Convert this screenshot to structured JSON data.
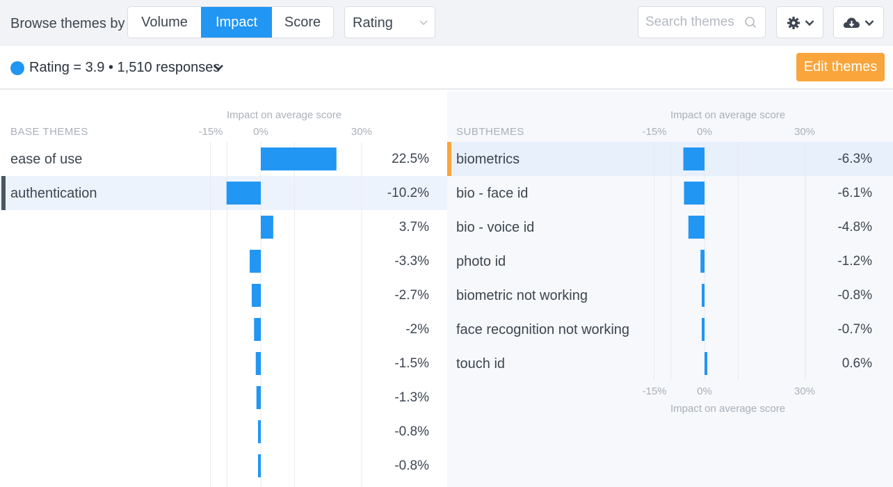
{
  "toolbar": {
    "browse_label": "Browse themes by",
    "modes": [
      "Volume",
      "Impact",
      "Score"
    ],
    "active_mode": "Impact",
    "metric_select": "Rating",
    "search_placeholder": "Search themes",
    "settings_icon": "gear-icon",
    "download_icon": "cloud-download-icon"
  },
  "summary": {
    "text": "Rating = 3.9 • 1,510 responses",
    "dot_color": "#2196f3"
  },
  "edit_button": "Edit themes",
  "colors": {
    "bar": "#2196f3",
    "edit": "#f9a53b",
    "left_selected": "#4a5566",
    "right_selected": "#f9a53b"
  },
  "base_panel": {
    "column_label": "BASE THEMES",
    "axis_title": "Impact on average score",
    "ticks": [
      "-15%",
      "0%",
      "30%"
    ],
    "selected_index": 1,
    "rows": [
      {
        "label": "ease of use",
        "value_text": "22.5%"
      },
      {
        "label": "authentication",
        "value_text": "-10.2%"
      },
      {
        "label": "",
        "value_text": "3.7%"
      },
      {
        "label": "",
        "value_text": "-3.3%"
      },
      {
        "label": "",
        "value_text": "-2.7%"
      },
      {
        "label": "",
        "value_text": "-2%"
      },
      {
        "label": "",
        "value_text": "-1.5%"
      },
      {
        "label": "",
        "value_text": "-1.3%"
      },
      {
        "label": "",
        "value_text": "-0.8%"
      },
      {
        "label": "",
        "value_text": "-0.8%"
      }
    ]
  },
  "sub_panel": {
    "column_label": "SUBTHEMES",
    "axis_title": "Impact on average score",
    "ticks": [
      "-15%",
      "0%",
      "30%"
    ],
    "bottom_ticks": [
      "-15%",
      "0%",
      "30%"
    ],
    "bottom_axis_title": "Impact on average score",
    "selected_index": 0,
    "rows": [
      {
        "label": "biometrics",
        "value_text": "-6.3%"
      },
      {
        "label": "bio - face id",
        "value_text": "-6.1%"
      },
      {
        "label": "bio - voice id",
        "value_text": "-4.8%"
      },
      {
        "label": "photo id",
        "value_text": "-1.2%"
      },
      {
        "label": "biometric not working",
        "value_text": "-0.8%"
      },
      {
        "label": "face recognition not working",
        "value_text": "-0.7%"
      },
      {
        "label": "touch id",
        "value_text": "0.6%"
      }
    ]
  },
  "chart_data": [
    {
      "type": "bar",
      "xlabel": "Impact on average score",
      "xlim": [
        -15,
        30
      ],
      "values": [
        22.5,
        -10.2,
        3.7,
        -3.3,
        -2.7,
        -2.0,
        -1.5,
        -1.3,
        -0.8,
        -0.8
      ]
    },
    {
      "type": "bar",
      "xlabel": "Impact on average score",
      "xlim": [
        -15,
        30
      ],
      "categories": [
        "biometrics",
        "bio - face id",
        "bio - voice id",
        "photo id",
        "biometric not working",
        "face recognition not working",
        "touch id"
      ],
      "values": [
        -6.3,
        -6.1,
        -4.8,
        -1.2,
        -0.8,
        -0.7,
        0.6
      ]
    }
  ]
}
